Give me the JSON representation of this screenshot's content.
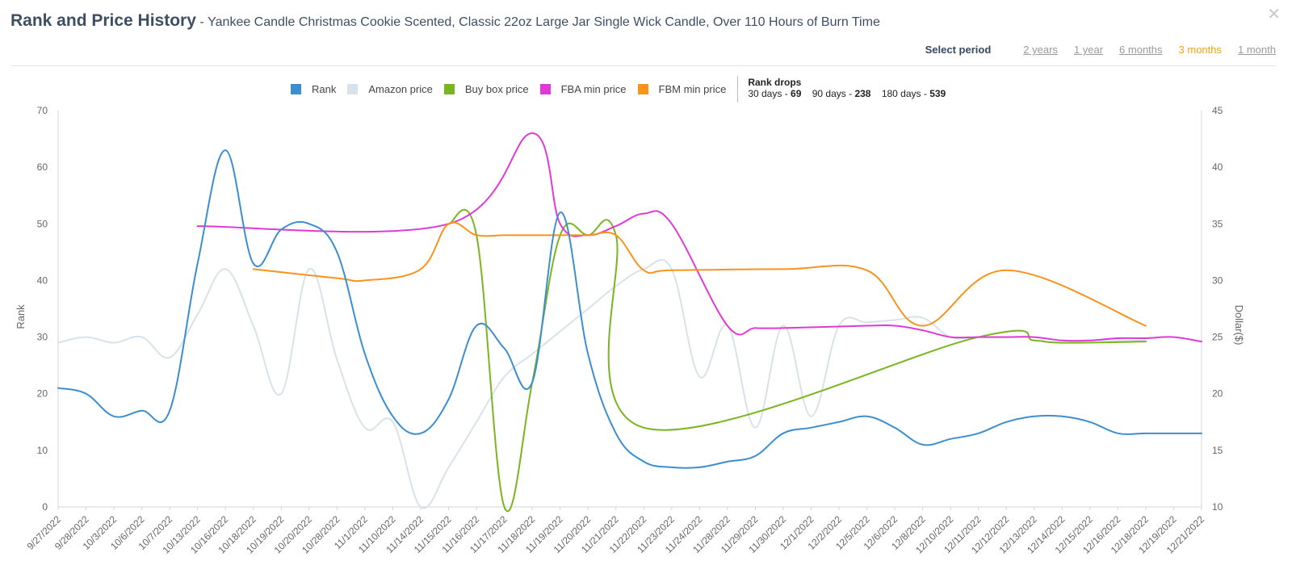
{
  "header": {
    "title": "Rank and Price History",
    "separator": "-",
    "subtitle": "Yankee Candle Christmas Cookie Scented, Classic 22oz Large Jar Single Wick Candle, Over 110 Hours of Burn Time",
    "close_icon": "close-icon"
  },
  "period": {
    "label": "Select period",
    "options": [
      "2 years",
      "1 year",
      "6 months",
      "3 months",
      "1 month"
    ],
    "selected": "3 months"
  },
  "legend": {
    "items": [
      {
        "label": "Rank",
        "color": "#3b8ed0"
      },
      {
        "label": "Amazon price",
        "color": "#d9e2ea"
      },
      {
        "label": "Buy box price",
        "color": "#78b51f"
      },
      {
        "label": "FBA min price",
        "color": "#e03ad6"
      },
      {
        "label": "FBM min price",
        "color": "#f8931d"
      }
    ]
  },
  "rank_drops": {
    "title": "Rank drops",
    "d30_label": "30 days -",
    "d30_value": "69",
    "d90_label": "90 days -",
    "d90_value": "238",
    "d180_label": "180 days -",
    "d180_value": "539"
  },
  "chart_data": {
    "type": "line",
    "x": [
      "9/27/2022",
      "9/28/2022",
      "10/3/2022",
      "10/6/2022",
      "10/7/2022",
      "10/13/2022",
      "10/16/2022",
      "10/18/2022",
      "10/19/2022",
      "10/20/2022",
      "10/28/2022",
      "11/1/2022",
      "11/10/2022",
      "11/14/2022",
      "11/15/2022",
      "11/16/2022",
      "11/17/2022",
      "11/18/2022",
      "11/19/2022",
      "11/20/2022",
      "11/21/2022",
      "11/22/2022",
      "11/23/2022",
      "11/24/2022",
      "11/28/2022",
      "11/29/2022",
      "11/30/2022",
      "12/1/2022",
      "12/2/2022",
      "12/5/2022",
      "12/6/2022",
      "12/8/2022",
      "12/10/2022",
      "12/11/2022",
      "12/12/2022",
      "12/13/2022",
      "12/14/2022",
      "12/15/2022",
      "12/16/2022",
      "12/18/2022",
      "12/19/2022",
      "12/21/2022"
    ],
    "y_left": {
      "label": "Rank",
      "min": 0,
      "max": 70,
      "ticks": [
        0,
        10,
        20,
        30,
        40,
        50,
        60,
        70
      ]
    },
    "y_right": {
      "label": "Dollar($)",
      "min": 10,
      "max": 45,
      "ticks": [
        10,
        15,
        20,
        25,
        30,
        35,
        40,
        45
      ]
    },
    "series": [
      {
        "name": "Amazon price",
        "axis": "right",
        "color": "#d9e2ea",
        "values": [
          24.5,
          25,
          24.5,
          25,
          23.2,
          27,
          31,
          26,
          20,
          31,
          23,
          17,
          17.5,
          10,
          13.5,
          17.5,
          21.5,
          23.5,
          25.5,
          27.5,
          29.5,
          31,
          31,
          21.5,
          26,
          17,
          26,
          18,
          26,
          26.3,
          26.5,
          26.7,
          25,
          25,
          25,
          25,
          24.7,
          24.7,
          24.7,
          24.7,
          null,
          null
        ]
      },
      {
        "name": "Buy box price",
        "axis": "right",
        "color": "#78b51f",
        "values": [
          null,
          null,
          null,
          null,
          null,
          null,
          null,
          null,
          null,
          null,
          null,
          null,
          null,
          null,
          35,
          34,
          10,
          21,
          34,
          34,
          34,
          17,
          null,
          null,
          null,
          null,
          null,
          null,
          null,
          null,
          null,
          null,
          null,
          25,
          null,
          24.7,
          24.5,
          null,
          null,
          24.6,
          null,
          null
        ]
      },
      {
        "name": "FBA min price",
        "axis": "right",
        "color": "#e03ad6",
        "values": [
          null,
          null,
          null,
          null,
          null,
          34.8,
          null,
          null,
          null,
          null,
          null,
          null,
          null,
          null,
          35,
          null,
          null,
          43,
          35,
          34,
          34.8,
          35.9,
          35,
          null,
          26,
          25.8,
          25.8,
          null,
          null,
          26,
          26,
          25.6,
          25,
          25,
          25,
          25,
          24.7,
          24.7,
          24.9,
          24.9,
          25,
          24.6
        ]
      },
      {
        "name": "FBM min price",
        "axis": "right",
        "color": "#f8931d",
        "values": [
          null,
          null,
          null,
          null,
          null,
          null,
          null,
          31,
          null,
          null,
          30.2,
          30,
          null,
          31,
          35,
          34,
          34,
          34,
          34,
          34,
          34,
          30.9,
          30.9,
          null,
          null,
          null,
          31,
          null,
          null,
          30.9,
          null,
          26,
          null,
          null,
          30.9,
          null,
          null,
          null,
          null,
          26,
          null,
          null
        ]
      },
      {
        "name": "Rank",
        "axis": "left",
        "color": "#3b8ed0",
        "values": [
          21,
          20,
          16,
          17,
          17,
          43,
          63,
          43,
          49,
          50,
          45,
          27,
          16,
          13,
          19,
          32,
          28,
          22,
          52,
          27,
          13,
          8,
          7,
          7,
          8,
          9,
          13,
          14,
          15,
          16,
          14,
          11,
          12,
          13,
          15,
          16,
          16,
          15,
          13,
          13,
          13,
          13
        ]
      }
    ]
  }
}
